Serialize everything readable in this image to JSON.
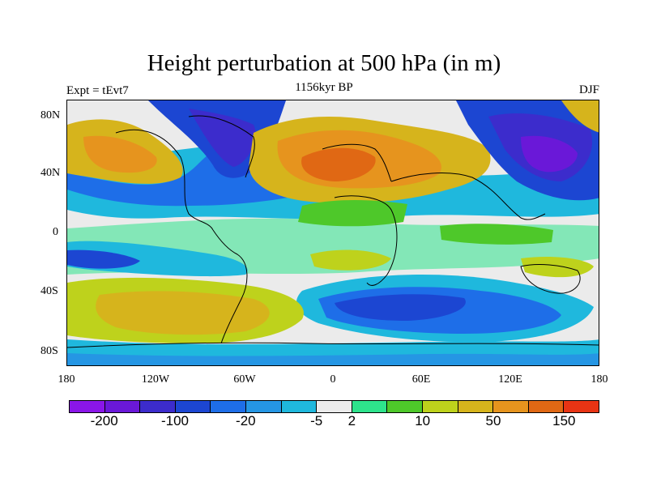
{
  "title": "Height perturbation at 500 hPa (in m)",
  "subtitle_left": "Expt = tEvt7",
  "subtitle_center": "1156kyr BP",
  "subtitle_right": "DJF",
  "lat_ticks": [
    "80N",
    "40N",
    "0",
    "40S",
    "80S"
  ],
  "lon_ticks": [
    "180",
    "120W",
    "60W",
    "0",
    "60E",
    "120E",
    "180"
  ],
  "colorbar": {
    "colors": [
      "#8a16e8",
      "#6a18d8",
      "#3c2ccc",
      "#1c46d2",
      "#1e6ee8",
      "#2596e4",
      "#1fb8dd",
      "#ebebeb",
      "#2ee38c",
      "#4ec82a",
      "#bed21c",
      "#d6b41c",
      "#e6941e",
      "#e06814",
      "#e83414"
    ],
    "labels": [
      "-200",
      "-100",
      "-20",
      "-5",
      "2",
      "10",
      "50",
      "150"
    ],
    "label_boundaries": [
      1,
      3,
      5,
      7,
      8,
      10,
      12,
      14
    ]
  },
  "colors": {
    "purple": "#6a18d8",
    "dark_blue": "#3c2ccc",
    "blue": "#1c46d2",
    "mid_blue": "#1e6ee8",
    "sky_blue": "#2596e4",
    "cyan": "#1fb8dd",
    "neutral": "#ebebeb",
    "light_green": "#2ee38c",
    "green": "#4ec82a",
    "yellow_green": "#bed21c",
    "gold": "#d6b41c",
    "orange": "#e6941e",
    "dark_orange": "#e06814",
    "red": "#e83414",
    "coastline": "#000000"
  }
}
